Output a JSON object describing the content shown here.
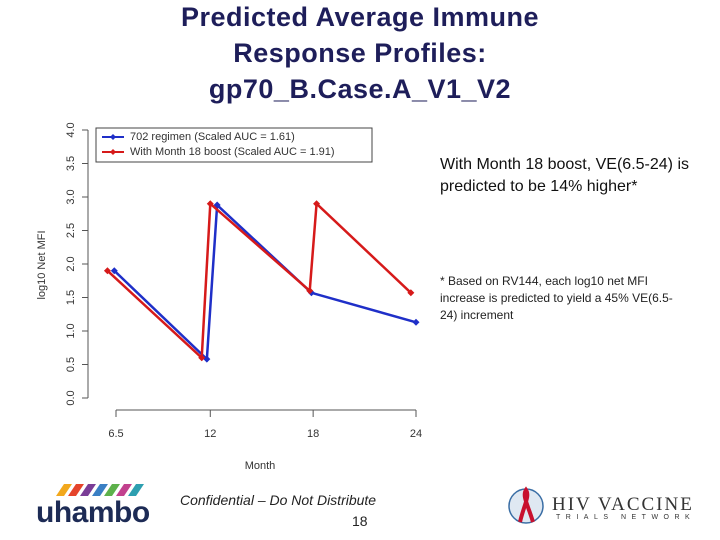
{
  "slide": {
    "title_lines": [
      "Predicted Average Immune",
      "Response Profiles:",
      "gp70_B.Case.A_V1_V2"
    ],
    "note": "With Month 18 boost, VE(6.5-24) is predicted to be 14% higher*",
    "footnote": "* Based on RV144, each log10 net MFI increase is predicted to yield a 45% VE(6.5-24) increment",
    "footer": "Confidential – Do Not Distribute",
    "page_number": "18",
    "logo_left": "uhambo",
    "logo_right": [
      "HIV VACCINE",
      "TRIALS NETWORK"
    ]
  },
  "chart_data": {
    "type": "line",
    "x_label": "Month",
    "y_label": "log10 Net MFI",
    "xlim": [
      6.5,
      24
    ],
    "xticks": [
      6.5,
      12,
      18,
      24
    ],
    "ylim": [
      0,
      4
    ],
    "yticks": [
      {
        "value": 0,
        "label": "0.0"
      },
      {
        "value": 0.5,
        "label": "0.5"
      },
      {
        "value": 1,
        "label": "1.0"
      },
      {
        "value": 1.5,
        "label": "1.5"
      },
      {
        "value": 2,
        "label": "2.0"
      },
      {
        "value": 2.5,
        "label": "2.5"
      },
      {
        "value": 3,
        "label": "3.0"
      },
      {
        "value": 3.5,
        "label": "3.5"
      },
      {
        "value": 4,
        "label": "4.0"
      }
    ],
    "legend": "top-left",
    "series": [
      {
        "name": "702 regimen (Scaled AUC = 1.61)",
        "color": "#1f2fc8",
        "x": [
          6.4,
          11.8,
          12.4,
          17.9,
          24
        ],
        "values": [
          1.9,
          0.58,
          2.88,
          1.57,
          1.13
        ]
      },
      {
        "name": "With Month 18 boost (Scaled AUC = 1.91)",
        "color": "#d61a1a",
        "x": [
          6,
          11.5,
          12,
          17.8,
          18.2,
          23.7
        ],
        "values": [
          1.9,
          0.6,
          2.9,
          1.6,
          2.9,
          1.57
        ]
      }
    ]
  }
}
